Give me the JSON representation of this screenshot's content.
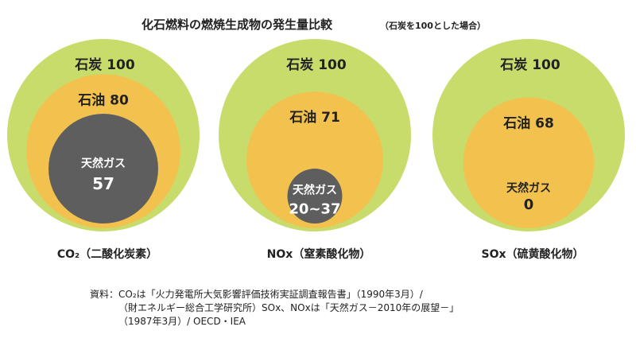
{
  "title": "化石燃料の燃焼生成物の発生量比較",
  "title_note": "（石炭を100とした場合）",
  "colors": {
    "coal": "#c8dc6c",
    "oil": "#f2c14e",
    "gas": "#5e5e5e"
  },
  "chart_data": {
    "type": "bubble",
    "title": "化石燃料の燃焼生成物の発生量比較",
    "subtitle": "（石炭を100とした場合）",
    "series_names": [
      "石炭",
      "石油",
      "天然ガス"
    ],
    "groups": [
      {
        "caption": "CO₂（二酸化炭素）",
        "items": [
          {
            "name": "石炭",
            "value": 100,
            "label": "100"
          },
          {
            "name": "石油",
            "value": 80,
            "label": "80"
          },
          {
            "name": "天然ガス",
            "value": 57,
            "label": "57"
          }
        ]
      },
      {
        "caption": "NOx（窒素酸化物）",
        "items": [
          {
            "name": "石炭",
            "value": 100,
            "label": "100"
          },
          {
            "name": "石油",
            "value": 71,
            "label": "71"
          },
          {
            "name": "天然ガス",
            "value": 28.5,
            "label": "20~37"
          }
        ]
      },
      {
        "caption": "SOx（硫黄酸化物）",
        "items": [
          {
            "name": "石炭",
            "value": 100,
            "label": "100"
          },
          {
            "name": "石油",
            "value": 68,
            "label": "68"
          },
          {
            "name": "天然ガス",
            "value": 0,
            "label": "0"
          }
        ]
      }
    ]
  },
  "source": {
    "line1": "資料：CO₂は「火力発電所大気影響評価技術実証調査報告書」（1990年3月）/",
    "line2": "（財エネルギー総合工学研究所）SOx、NOxは「天然ガス－2010年の展望－」",
    "line3": "（1987年3月）/ OECD・IEA"
  }
}
